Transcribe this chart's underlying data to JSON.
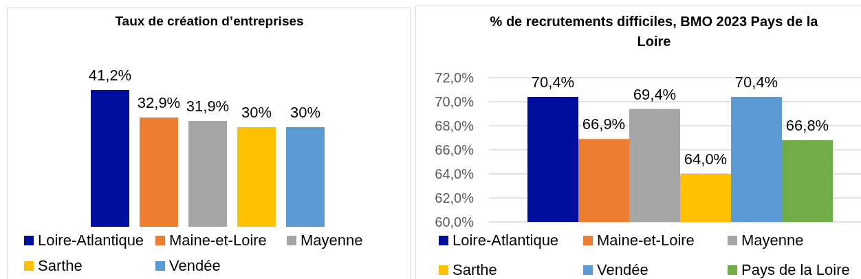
{
  "chart_data": [
    {
      "type": "bar",
      "title": "Taux de création d’entreprises",
      "categories": [
        null
      ],
      "series": [
        {
          "name": "Loire-Atlantique",
          "color": "#000f9f",
          "values": [
            41.2
          ],
          "value_labels": [
            "41,2%"
          ]
        },
        {
          "name": "Maine-et-Loire",
          "color": "#ed7d31",
          "values": [
            32.9
          ],
          "value_labels": [
            "32,9%"
          ]
        },
        {
          "name": "Mayenne",
          "color": "#a5a5a5",
          "values": [
            31.9
          ],
          "value_labels": [
            "31,9%"
          ]
        },
        {
          "name": "Sarthe",
          "color": "#ffc000",
          "values": [
            30
          ],
          "value_labels": [
            "30%"
          ]
        },
        {
          "name": "Vendée",
          "color": "#5b9bd5",
          "values": [
            30
          ],
          "value_labels": [
            "30%"
          ]
        }
      ],
      "legend": "bottom"
    },
    {
      "type": "bar",
      "title": "% de recrutements difficiles, BMO 2023 Pays de la Loire",
      "categories": [
        null
      ],
      "series": [
        {
          "name": "Loire-Atlantique",
          "color": "#000f9f",
          "values": [
            70.4
          ],
          "value_labels": [
            "70,4%"
          ]
        },
        {
          "name": "Maine-et-Loire",
          "color": "#ed7d31",
          "values": [
            66.9
          ],
          "value_labels": [
            "66,9%"
          ]
        },
        {
          "name": "Mayenne",
          "color": "#a5a5a5",
          "values": [
            69.4
          ],
          "value_labels": [
            "69,4%"
          ]
        },
        {
          "name": "Sarthe",
          "color": "#ffc000",
          "values": [
            64.0
          ],
          "value_labels": [
            "64,0%"
          ]
        },
        {
          "name": "Vendée",
          "color": "#5b9bd5",
          "values": [
            70.4
          ],
          "value_labels": [
            "70,4%"
          ]
        },
        {
          "name": "Pays de la Loire",
          "color": "#70ad47",
          "values": [
            66.8
          ],
          "value_labels": [
            "66,8%"
          ]
        }
      ],
      "ylim": [
        60,
        72
      ],
      "yticks": [
        {
          "value": 60,
          "label": "60,0%"
        },
        {
          "value": 62,
          "label": "62,0%"
        },
        {
          "value": 64,
          "label": "64,0%"
        },
        {
          "value": 66,
          "label": "66,0%"
        },
        {
          "value": 68,
          "label": "68,0%"
        },
        {
          "value": 70,
          "label": "70,0%"
        },
        {
          "value": 72,
          "label": "72,0%"
        }
      ],
      "grid": "y",
      "legend": "bottom"
    }
  ]
}
